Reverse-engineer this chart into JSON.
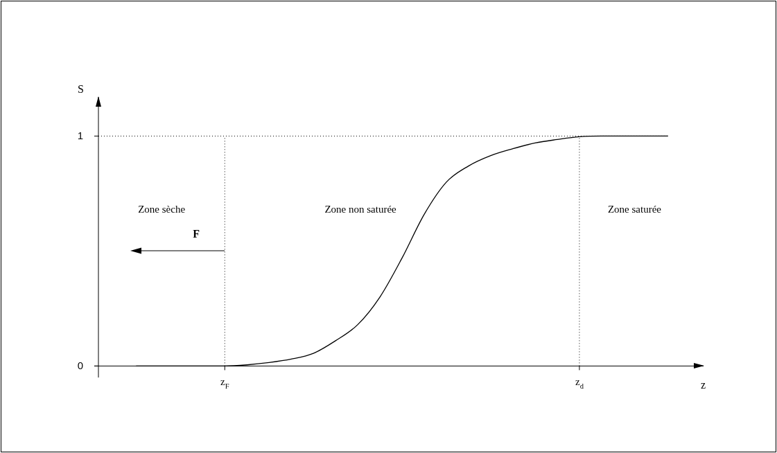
{
  "chart_data": {
    "type": "line",
    "xlabel": "z",
    "ylabel": "S",
    "categories": [
      null,
      null,
      null,
      null,
      "z$_{F}$",
      null,
      null,
      null,
      null,
      null,
      null,
      null,
      null,
      null,
      null,
      null,
      null,
      null,
      null,
      null,
      "z$_{d}$",
      null,
      null,
      null,
      null
    ],
    "ylim": [
      -0.05,
      1.17
    ],
    "yticks": [
      0,
      1
    ],
    "grid": "x",
    "legend": false,
    "marker": "none",
    "line_style": "solid",
    "series": [
      {
        "color": "#000000",
        "values": [
          0,
          0,
          0,
          0,
          0,
          0.005,
          0.015,
          0.03,
          0.055,
          0.11,
          0.18,
          0.3,
          0.47,
          0.66,
          0.8,
          0.87,
          0.915,
          0.945,
          0.97,
          0.985,
          0.997,
          1,
          1,
          1,
          1
        ]
      }
    ],
    "ref_lines": [
      {
        "axis": "y",
        "value": 1,
        "line_style": "dotted",
        "color": "#000000"
      }
    ],
    "annotations": [
      "Zone sèche",
      "Zone non saturée",
      "Zone saturée",
      "F"
    ]
  }
}
